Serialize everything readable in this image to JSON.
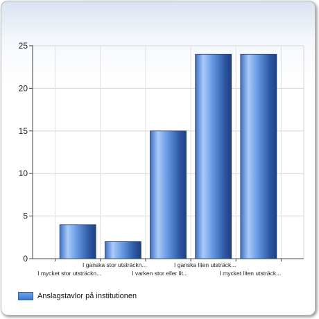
{
  "chart_data": {
    "type": "bar",
    "categories": [
      "I mycket stor utsträckn...",
      "I ganska stor utsträckn...",
      "I varken stor eller lit...",
      "I ganska liten utsträck...",
      "I mycket liten utsträck..."
    ],
    "series": [
      {
        "name": "Anslagstavlor på institutionen",
        "values": [
          4,
          2,
          15,
          24,
          24
        ]
      }
    ],
    "ylim": [
      0,
      25
    ],
    "yticks": [
      0,
      5,
      10,
      15,
      20,
      25
    ],
    "grid": true,
    "legend_position": "bottom-left",
    "bar_color": "#4a86e0"
  }
}
